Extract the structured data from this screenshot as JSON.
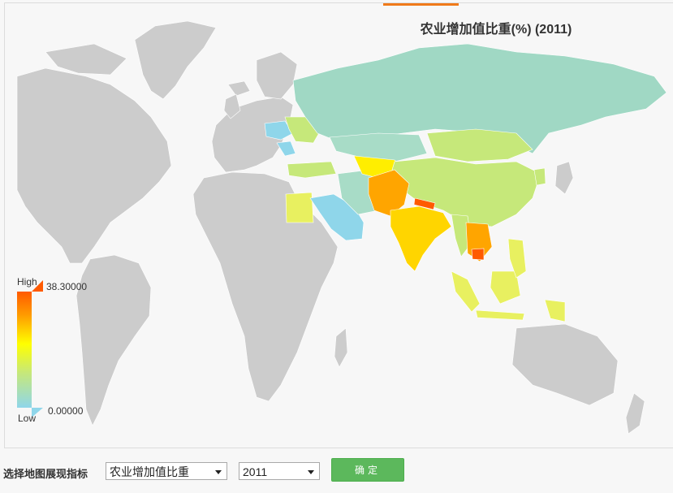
{
  "map": {
    "title": "农业增加值比重(%) (2011)",
    "indicator": "农业增加值比重",
    "year": "2011",
    "scale_colors": {
      "high": "#ff5a00",
      "mid": "#ffff00",
      "low": "#8fd6ea",
      "no_data": "#cccccc"
    }
  },
  "legend": {
    "high_label": "High",
    "low_label": "Low",
    "max_value": "38.30000",
    "min_value": "0.00000"
  },
  "controls": {
    "label": "选择地图展现指标",
    "indicator_select": "农业增加值比重",
    "year_select": "2011",
    "confirm_label": "确定"
  },
  "icons": [
    "dropdown-caret-icon"
  ]
}
